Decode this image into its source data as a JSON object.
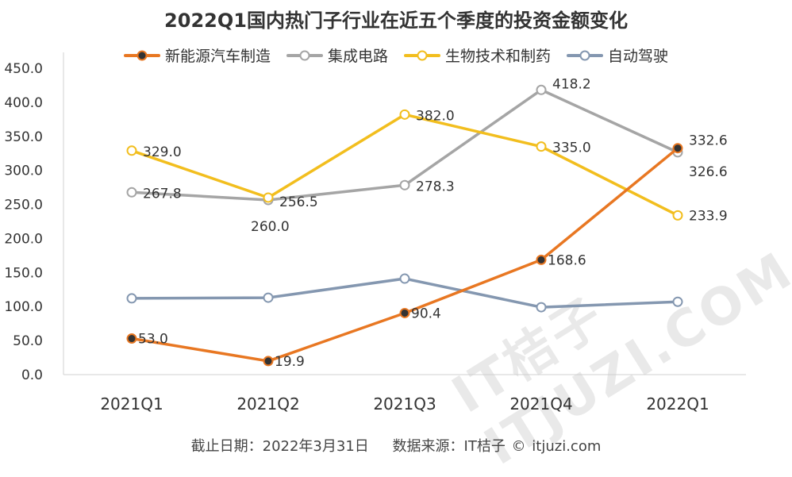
{
  "title": "2022Q1国内热门子行业在近五个季度的投资金额变化",
  "footer": {
    "date_text": "截止日期：2022年3月31日",
    "source_text": "数据来源：IT桔子 © itjuzi.com"
  },
  "watermark": "IT桔子 ITJUZI.COM",
  "chart_data": {
    "type": "line",
    "title": "2022Q1国内热门子行业在近五个季度的投资金额变化",
    "categories": [
      "2021Q1",
      "2021Q2",
      "2021Q3",
      "2021Q4",
      "2022Q1"
    ],
    "ylim": [
      0,
      450
    ],
    "yticks": [
      "0.0",
      "50.0",
      "100.0",
      "150.0",
      "200.0",
      "250.0",
      "300.0",
      "350.0",
      "400.0",
      "450.0"
    ],
    "grid": false,
    "legend_position": "top",
    "series": [
      {
        "name": "新能源汽车制造",
        "color": "#E87722",
        "marker_fill": "#333333",
        "values": [
          53.0,
          19.9,
          90.4,
          168.6,
          332.6
        ],
        "labels": [
          "53.0",
          "19.9",
          "90.4",
          "168.6",
          "332.6"
        ]
      },
      {
        "name": "集成电路",
        "color": "#A5A5A5",
        "marker_fill": "#ffffff",
        "values": [
          267.8,
          256.5,
          278.3,
          418.2,
          326.6
        ],
        "labels": [
          "267.8",
          "256.5",
          "278.3",
          "418.2",
          "326.6"
        ]
      },
      {
        "name": "生物技术和制药",
        "color": "#F2BE1E",
        "marker_fill": "#ffffff",
        "values": [
          329.0,
          260.0,
          382.0,
          335.0,
          233.9
        ],
        "labels": [
          "329.0",
          "260.0",
          "382.0",
          "335.0",
          "233.9"
        ]
      },
      {
        "name": "自动驾驶",
        "color": "#8497B0",
        "marker_fill": "#ffffff",
        "values": [
          112,
          113,
          141,
          99,
          107
        ],
        "labels": []
      }
    ]
  }
}
